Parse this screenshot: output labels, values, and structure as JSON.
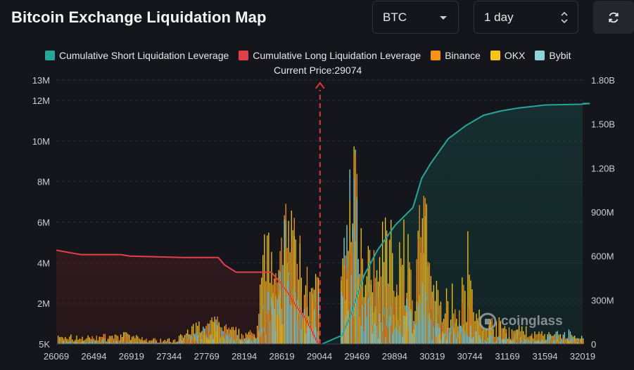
{
  "title": "Bitcoin Exchange Liquidation Map",
  "controls": {
    "symbol": "BTC",
    "range": "1 day",
    "refresh_icon": "refresh-icon"
  },
  "legend": [
    {
      "label": "Cumulative Short Liquidation Leverage",
      "color": "#26a69a"
    },
    {
      "label": "Cumulative Long Liquidation Leverage",
      "color": "#e0404a"
    },
    {
      "label": "Binance",
      "color": "#f7931a"
    },
    {
      "label": "OKX",
      "color": "#f5c518"
    },
    {
      "label": "Bybit",
      "color": "#8fd3d6"
    }
  ],
  "current_price_label": "Current Price:29074",
  "watermark": "coinglass",
  "chart_data": {
    "type": "bar",
    "current_price": 29074,
    "x_ticks": [
      "26069",
      "26494",
      "26919",
      "27344",
      "27769",
      "28194",
      "28619",
      "29044",
      "29469",
      "29894",
      "30319",
      "30744",
      "31169",
      "31594",
      "32019"
    ],
    "x_range": [
      26069,
      32019
    ],
    "y_left": {
      "ticks": [
        "5K",
        "2M",
        "4M",
        "6M",
        "8M",
        "10M",
        "12M",
        "13M"
      ],
      "tick_values": [
        5000,
        2000000,
        4000000,
        6000000,
        8000000,
        10000000,
        12000000,
        13000000
      ],
      "range": [
        0,
        13000000
      ]
    },
    "y_right": {
      "ticks": [
        "0",
        "300M",
        "600M",
        "900M",
        "1.20B",
        "1.50B",
        "1.80B"
      ],
      "tick_values": [
        0,
        300000000,
        600000000,
        900000000,
        1200000000,
        1500000000,
        1800000000
      ],
      "range": [
        0,
        1800000000
      ]
    },
    "series": [
      {
        "name": "Cumulative Long Liquidation Leverage",
        "axis": "right",
        "x": [
          26069,
          26200,
          26350,
          26800,
          26900,
          27200,
          27500,
          27900,
          27970,
          28100,
          28200,
          28500,
          28600,
          28700,
          28780,
          28880,
          28950,
          29010,
          29044
        ],
        "values": [
          640000000,
          625000000,
          610000000,
          610000000,
          600000000,
          595000000,
          590000000,
          590000000,
          540000000,
          490000000,
          490000000,
          490000000,
          420000000,
          340000000,
          260000000,
          180000000,
          100000000,
          20000000,
          0
        ]
      },
      {
        "name": "Cumulative Short Liquidation Leverage",
        "axis": "right",
        "x": [
          29074,
          29300,
          29400,
          29550,
          29700,
          29900,
          30100,
          30200,
          30300,
          30500,
          30700,
          30900,
          31100,
          31300,
          31600,
          32000,
          32100
        ],
        "values": [
          0,
          60000000,
          200000000,
          470000000,
          640000000,
          810000000,
          930000000,
          1130000000,
          1230000000,
          1400000000,
          1490000000,
          1560000000,
          1590000000,
          1610000000,
          1630000000,
          1635000000,
          1640000000
        ]
      },
      {
        "name": "Binance",
        "axis": "left",
        "x": [
          26100,
          26300,
          26600,
          26850,
          27100,
          27400,
          27700,
          27850,
          28000,
          28300,
          28450,
          28550,
          28650,
          28750,
          28850,
          28950,
          29350,
          29400,
          29450,
          29500,
          29550,
          29600,
          29650,
          29700,
          29800,
          29900,
          30000,
          30100,
          30200,
          30300,
          30400,
          30500,
          30600,
          30700,
          30800,
          30900,
          31000,
          31200,
          31500,
          31800,
          32000
        ],
        "values": [
          300000,
          200000,
          500000,
          400000,
          300000,
          200000,
          600000,
          1400000,
          900000,
          600000,
          4500000,
          3200000,
          7200000,
          6000000,
          5200000,
          2800000,
          4200000,
          6100000,
          8900000,
          5400000,
          4200000,
          3300000,
          5100000,
          2900000,
          3600000,
          2400000,
          4800000,
          3500000,
          8600000,
          3000000,
          1800000,
          2600000,
          1900000,
          3200000,
          1500000,
          900000,
          1400000,
          700000,
          500000,
          300000,
          200000
        ]
      },
      {
        "name": "OKX",
        "axis": "left",
        "x": [
          26100,
          26300,
          26600,
          26850,
          27100,
          27400,
          27700,
          27850,
          28000,
          28300,
          28450,
          28550,
          28650,
          28750,
          28850,
          28950,
          29350,
          29400,
          29450,
          29500,
          29550,
          29600,
          29650,
          29700,
          29800,
          29900,
          30000,
          30100,
          30200,
          30300,
          30400,
          30500,
          30600,
          30700,
          30800,
          30900,
          31000,
          31200,
          31500,
          31800,
          32000
        ],
        "values": [
          400000,
          500000,
          300000,
          600000,
          200000,
          300000,
          1200000,
          1500000,
          800000,
          500000,
          6200000,
          2800000,
          6500000,
          7800000,
          5900000,
          3000000,
          5000000,
          7400000,
          11800000,
          6200000,
          5300000,
          4700000,
          6400000,
          3400000,
          7600000,
          4100000,
          6800000,
          3200000,
          9300000,
          3700000,
          2500000,
          3100000,
          2300000,
          5800000,
          2000000,
          1100000,
          1500000,
          1000000,
          700000,
          500000,
          300000
        ]
      },
      {
        "name": "Bybit",
        "axis": "left",
        "x": [
          26100,
          26300,
          26600,
          26850,
          27100,
          27400,
          27700,
          27850,
          28000,
          28300,
          28450,
          28550,
          28650,
          28750,
          28850,
          28950,
          29350,
          29400,
          29450,
          29500,
          29550,
          29600,
          29650,
          29700,
          29800,
          29900,
          30000,
          30100,
          30200,
          30300,
          30400,
          30500,
          30600,
          30700,
          30800,
          30900,
          31000,
          31200,
          31500,
          31800,
          32000
        ],
        "values": [
          200000,
          100000,
          200000,
          100000,
          100000,
          100000,
          700000,
          1600000,
          500000,
          300000,
          3000000,
          1700000,
          6800000,
          3600000,
          2500000,
          1200000,
          8000000,
          9600000,
          11300000,
          4200000,
          2800000,
          2000000,
          3100000,
          1600000,
          2100000,
          1300000,
          2600000,
          1700000,
          3100000,
          1400000,
          900000,
          1100000,
          800000,
          1500000,
          700000,
          400000,
          500000,
          300000,
          200000,
          800000,
          400000
        ]
      }
    ],
    "grid": true,
    "legend_position": "top"
  }
}
